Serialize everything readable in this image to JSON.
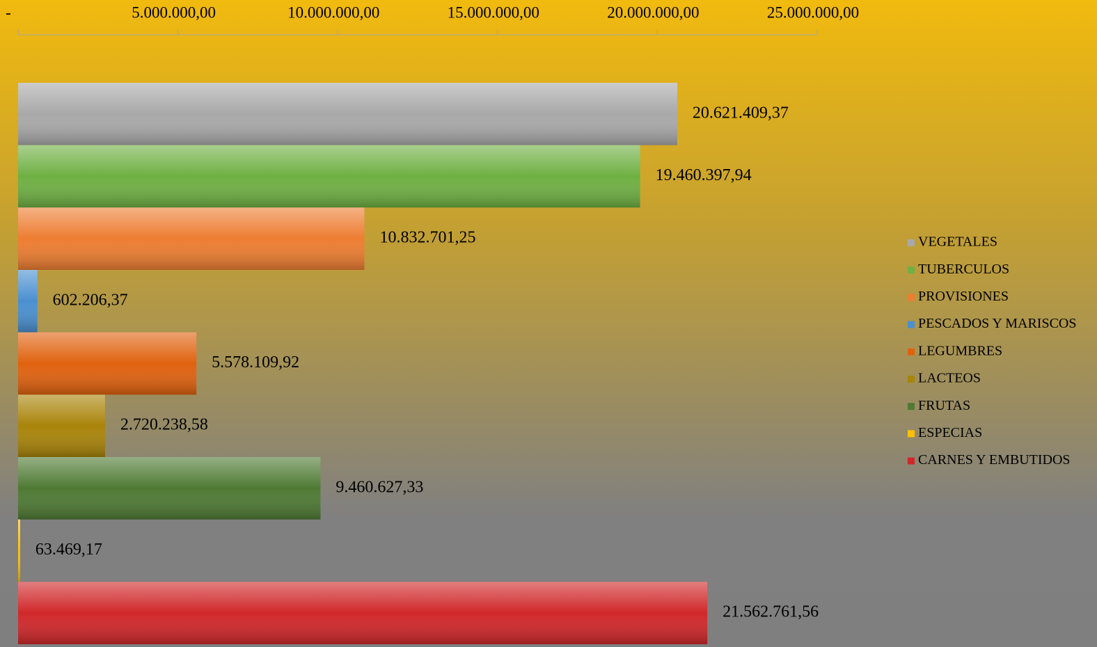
{
  "chart_data": {
    "type": "bar",
    "orientation": "horizontal",
    "categories": [
      "VEGETALES",
      "TUBERCULOS",
      "PROVISIONES",
      "PESCADOS Y MARISCOS",
      "LEGUMBRES",
      "LACTEOS",
      "FRUTAS",
      "ESPECIAS",
      "CARNES Y EMBUTIDOS"
    ],
    "values": [
      20621409.37,
      19460397.94,
      10832701.25,
      602206.37,
      5578109.92,
      2720238.58,
      9460627.33,
      63469.17,
      21562761.56
    ],
    "value_labels": [
      "20.621.409,37",
      "19.460.397,94",
      "10.832.701,25",
      "602.206,37",
      "5.578.109,92",
      "2.720.238,58",
      "9.460.627,33",
      "63.469,17",
      "21.562.761,56"
    ],
    "colors": [
      "#a9a9a9",
      "#6fb043",
      "#ed7d31",
      "#4a90d0",
      "#e0620f",
      "#a9840a",
      "#4f7a34",
      "#ffc000",
      "#d0282a"
    ],
    "xlim": [
      0,
      25000000
    ],
    "xticks": [
      {
        "value": 0,
        "label": "-"
      },
      {
        "value": 5000000,
        "label": "5.000.000,00"
      },
      {
        "value": 10000000,
        "label": "10.000.000,00"
      },
      {
        "value": 15000000,
        "label": "15.000.000,00"
      },
      {
        "value": 20000000,
        "label": "20.000.000,00"
      },
      {
        "value": 25000000,
        "label": "25.000.000,00"
      }
    ],
    "legend": "right"
  }
}
